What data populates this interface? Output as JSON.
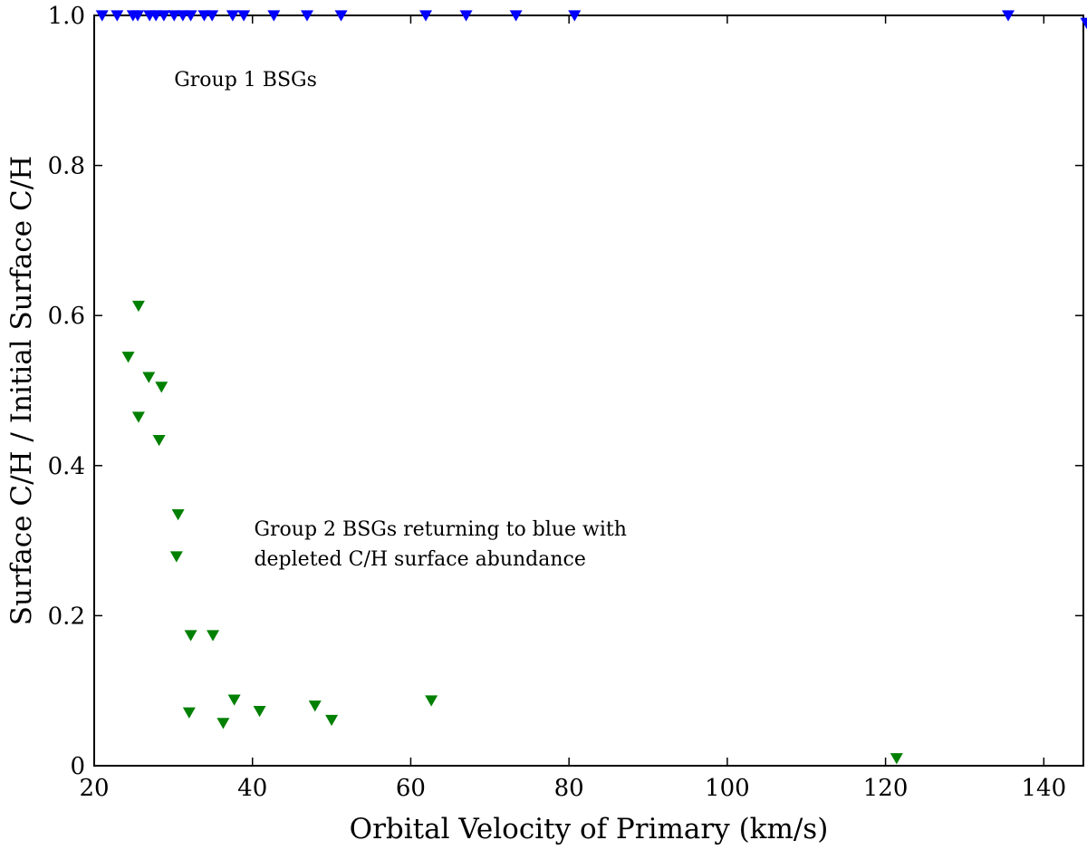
{
  "chart_data": {
    "type": "scatter",
    "xlabel": "Orbital Velocity of Primary (km/s)",
    "ylabel": "Surface C/H / Initial Surface C/H",
    "xlim": [
      20,
      145
    ],
    "ylim": [
      0,
      1.0
    ],
    "xticks": [
      20,
      40,
      60,
      80,
      100,
      120,
      140
    ],
    "xtick_labels": [
      "20",
      "40",
      "60",
      "80",
      "100",
      "120",
      "140"
    ],
    "yticks": [
      0,
      0.2,
      0.4,
      0.6,
      0.8,
      1.0
    ],
    "ytick_labels": [
      "0",
      "0.2",
      "0.4",
      "0.6",
      "0.8",
      "1.0"
    ],
    "grid": false,
    "marker": "triangle-down",
    "series": [
      {
        "color": "#0000ff",
        "points": [
          [
            21.0,
            1.0
          ],
          [
            22.9,
            1.0
          ],
          [
            24.9,
            1.0
          ],
          [
            25.5,
            1.0
          ],
          [
            27.0,
            1.0
          ],
          [
            27.8,
            1.0
          ],
          [
            28.8,
            1.0
          ],
          [
            30.1,
            1.0
          ],
          [
            31.2,
            1.0
          ],
          [
            32.2,
            1.0
          ],
          [
            33.9,
            1.0
          ],
          [
            34.9,
            1.0
          ],
          [
            37.5,
            1.0
          ],
          [
            38.9,
            1.0
          ],
          [
            42.7,
            1.0
          ],
          [
            46.9,
            1.0
          ],
          [
            51.2,
            1.0
          ],
          [
            61.9,
            1.0
          ],
          [
            67.0,
            1.0
          ],
          [
            73.3,
            1.0
          ],
          [
            80.7,
            1.0
          ],
          [
            135.5,
            1.0
          ],
          [
            145.4,
            0.99
          ]
        ]
      },
      {
        "color": "#008000",
        "points": [
          [
            25.6,
            0.613
          ],
          [
            24.3,
            0.545
          ],
          [
            26.9,
            0.518
          ],
          [
            28.5,
            0.505
          ],
          [
            25.6,
            0.465
          ],
          [
            28.2,
            0.434
          ],
          [
            30.6,
            0.335
          ],
          [
            30.4,
            0.279
          ],
          [
            32.2,
            0.174
          ],
          [
            35.0,
            0.174
          ],
          [
            32.0,
            0.071
          ],
          [
            37.7,
            0.088
          ],
          [
            36.3,
            0.057
          ],
          [
            40.9,
            0.073
          ],
          [
            47.9,
            0.08
          ],
          [
            50.0,
            0.061
          ],
          [
            62.6,
            0.087
          ],
          [
            121.4,
            0.01
          ]
        ]
      }
    ],
    "annotations": [
      {
        "text": "Group 1 BSGs",
        "x": 30.1,
        "y": 0.906
      },
      {
        "text": "Group 2 BSGs returning to blue with",
        "x": 40.2,
        "y": 0.307
      },
      {
        "text": "depleted C/H surface abundance",
        "x": 40.2,
        "y": 0.267
      }
    ]
  }
}
